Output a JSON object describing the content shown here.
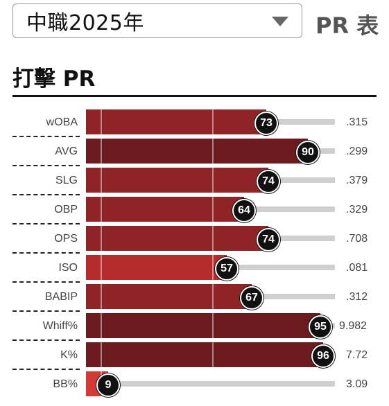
{
  "season_selector": {
    "selected": "中職2025年",
    "caret_icon": "chevron-down-icon"
  },
  "header": {
    "pr_label": "PR 表"
  },
  "section": {
    "title": "打擊 PR"
  },
  "metrics": [
    {
      "label": "wOBA",
      "pr": 73,
      "value": ".315"
    },
    {
      "label": "AVG",
      "pr": 90,
      "value": ".299"
    },
    {
      "label": "SLG",
      "pr": 74,
      "value": ".379"
    },
    {
      "label": "OBP",
      "pr": 64,
      "value": ".329"
    },
    {
      "label": "OPS",
      "pr": 74,
      "value": ".708"
    },
    {
      "label": "ISO",
      "pr": 57,
      "value": ".081"
    },
    {
      "label": "BABIP",
      "pr": 67,
      "value": ".312"
    },
    {
      "label": "Whiff%",
      "pr": 95,
      "value": "9.982"
    },
    {
      "label": "K%",
      "pr": 96,
      "value": "7.72"
    },
    {
      "label": "BB%",
      "pr": 9,
      "value": "3.09"
    }
  ],
  "colors": {
    "bar_dark": "#6b1b1e",
    "bar_mid": "#8e2426",
    "bar_light": "#b52a2a",
    "bar_low": "#d33a36",
    "track": "#cfcfcf",
    "badge": "#111111"
  }
}
